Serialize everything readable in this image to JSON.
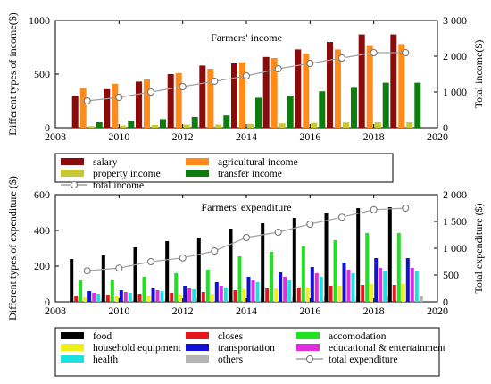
{
  "chart_data": [
    {
      "type": "bar",
      "title": "Farmers' income",
      "xlabel": "",
      "ylabel": "Different types of income($)",
      "y2label": "Total income($)",
      "xlim": [
        2008,
        2020
      ],
      "x_ticks": [
        "2008",
        "2010",
        "2012",
        "2014",
        "2016",
        "2018",
        "2020"
      ],
      "ylim": [
        0,
        1000
      ],
      "y_ticks": [
        "0",
        "500",
        "1000"
      ],
      "y2lim": [
        0,
        3000
      ],
      "y2_ticks": [
        "0",
        "1 000",
        "2 000",
        "3 000"
      ],
      "x": [
        2009,
        2010,
        2011,
        2012,
        2013,
        2014,
        2015,
        2016,
        2017,
        2018,
        2019
      ],
      "series": [
        {
          "name": "salary",
          "kind": "bar",
          "color": "#8b0a0a",
          "values": [
            300,
            360,
            430,
            500,
            580,
            600,
            660,
            730,
            800,
            870,
            870
          ]
        },
        {
          "name": "agricultural income",
          "kind": "bar",
          "color": "#ff8c1a",
          "values": [
            370,
            410,
            450,
            510,
            550,
            610,
            650,
            690,
            730,
            770,
            780
          ]
        },
        {
          "name": "property income",
          "kind": "bar",
          "color": "#c8c832",
          "values": [
            15,
            20,
            25,
            28,
            30,
            35,
            40,
            45,
            48,
            50,
            50
          ]
        },
        {
          "name": "transfer income",
          "kind": "bar",
          "color": "#0d7d0d",
          "values": [
            50,
            65,
            80,
            100,
            115,
            280,
            300,
            340,
            380,
            420,
            420
          ]
        },
        {
          "name": "total income",
          "kind": "line",
          "axis": "right",
          "values": [
            750,
            850,
            1000,
            1150,
            1300,
            1450,
            1650,
            1800,
            1950,
            2100,
            2100
          ]
        }
      ],
      "legend_position": "bottom"
    },
    {
      "type": "bar",
      "title": "Farmers' expenditure",
      "xlabel": "",
      "ylabel": "Different types of expenditure ($)",
      "y2label": "Total expenditure ($)",
      "xlim": [
        2008,
        2020
      ],
      "x_ticks": [
        "2008",
        "2010",
        "2012",
        "2014",
        "2016",
        "2018",
        "2020"
      ],
      "ylim": [
        0,
        600
      ],
      "y_ticks": [
        "0",
        "200",
        "400",
        "600"
      ],
      "y2lim": [
        0,
        2000
      ],
      "y2_ticks": [
        "0",
        "500",
        "1 000",
        "1 500",
        "2 000"
      ],
      "x": [
        2009,
        2010,
        2011,
        2012,
        2013,
        2014,
        2015,
        2016,
        2017,
        2018,
        2019
      ],
      "series": [
        {
          "name": "food",
          "kind": "bar",
          "color": "#000000",
          "values": [
            240,
            260,
            305,
            340,
            360,
            410,
            440,
            470,
            495,
            525,
            530
          ]
        },
        {
          "name": "closes",
          "kind": "bar",
          "color": "#e8161c",
          "values": [
            35,
            40,
            45,
            50,
            55,
            65,
            75,
            80,
            90,
            95,
            95
          ]
        },
        {
          "name": "accomodation",
          "kind": "bar",
          "color": "#22e022",
          "values": [
            120,
            125,
            140,
            160,
            180,
            255,
            280,
            310,
            345,
            385,
            385
          ]
        },
        {
          "name": "household equipment",
          "kind": "bar",
          "color": "#f0f016",
          "values": [
            25,
            30,
            35,
            40,
            45,
            70,
            75,
            80,
            90,
            100,
            100
          ]
        },
        {
          "name": "transportation",
          "kind": "bar",
          "color": "#1010d8",
          "values": [
            60,
            65,
            75,
            90,
            110,
            140,
            165,
            195,
            220,
            245,
            245
          ]
        },
        {
          "name": "educational & entertainment",
          "kind": "bar",
          "color": "#e22ce2",
          "values": [
            50,
            55,
            65,
            75,
            90,
            120,
            140,
            160,
            180,
            190,
            190
          ]
        },
        {
          "name": "health",
          "kind": "bar",
          "color": "#1ee0e0",
          "values": [
            45,
            50,
            60,
            70,
            80,
            110,
            125,
            140,
            160,
            175,
            175
          ]
        },
        {
          "name": "others",
          "kind": "bar",
          "color": "#b4b4b4",
          "values": [
            15,
            15,
            17,
            18,
            20,
            25,
            25,
            28,
            30,
            32,
            32
          ]
        },
        {
          "name": "total expenditure",
          "kind": "line",
          "axis": "right",
          "values": [
            580,
            630,
            750,
            820,
            950,
            1200,
            1300,
            1450,
            1580,
            1720,
            1750
          ]
        }
      ],
      "legend_position": "bottom"
    }
  ]
}
